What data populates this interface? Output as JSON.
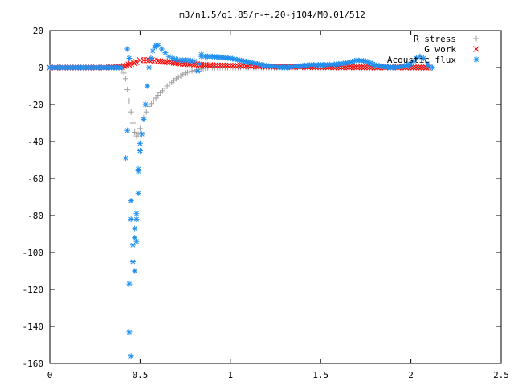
{
  "chart_data": {
    "type": "scatter",
    "title": "m3/n1.5/q1.85/r-+.20-j104/M0.01/512",
    "xlabel": "",
    "ylabel": "",
    "xlim": [
      0,
      2.5
    ],
    "ylim": [
      -160,
      20
    ],
    "x_ticks": [
      0,
      0.5,
      1,
      1.5,
      2,
      2.5
    ],
    "x_tick_labels": [
      "0",
      "0.5",
      "1",
      "1.5",
      "2",
      "2.5"
    ],
    "y_ticks": [
      20,
      0,
      -20,
      -40,
      -60,
      -80,
      -100,
      -120,
      -140,
      -160
    ],
    "y_tick_labels": [
      "20",
      "0",
      "-20",
      "-40",
      "-60",
      "-80",
      "-100",
      "-120",
      "-140",
      "-160"
    ],
    "grid": false,
    "legend_position": "top-right",
    "series": [
      {
        "name": "R stress",
        "marker": "plus",
        "color": "#a0a0a0",
        "x": [
          0.0,
          0.1,
          0.2,
          0.3,
          0.38,
          0.4,
          0.41,
          0.42,
          0.43,
          0.44,
          0.45,
          0.46,
          0.47,
          0.48,
          0.49,
          0.5,
          0.52,
          0.55,
          0.6,
          0.65,
          0.7,
          0.75,
          0.8,
          0.85,
          0.9,
          1.0,
          1.1,
          1.2,
          1.3,
          1.4,
          1.5,
          1.6,
          1.7,
          1.8,
          1.9,
          2.0,
          2.1
        ],
        "y": [
          0,
          0,
          0,
          0,
          0,
          -1,
          -3,
          -6,
          -12,
          -18,
          -24,
          -30,
          -35,
          -37,
          -36,
          -33,
          -27,
          -21,
          -15,
          -10,
          -6,
          -3,
          -1.5,
          -0.5,
          0,
          0,
          0,
          0,
          0,
          0,
          0,
          0,
          0,
          0,
          0,
          0,
          0
        ]
      },
      {
        "name": "G work",
        "marker": "cross",
        "color": "#ff0000",
        "x": [
          0.0,
          0.1,
          0.2,
          0.3,
          0.4,
          0.45,
          0.48,
          0.5,
          0.52,
          0.55,
          0.58,
          0.6,
          0.65,
          0.7,
          0.75,
          0.8,
          0.85,
          0.9,
          1.0,
          1.1,
          1.2,
          1.3,
          1.4,
          1.5,
          1.6,
          1.7,
          1.8,
          1.9,
          2.0,
          2.1
        ],
        "y": [
          0,
          0,
          0,
          0,
          0.5,
          2,
          3,
          4,
          4,
          4,
          3.8,
          3.5,
          3,
          2.5,
          2,
          1.7,
          1.4,
          1.2,
          1,
          0.8,
          0.6,
          0.5,
          0.4,
          0.3,
          0.2,
          0.2,
          0.1,
          0.1,
          0.1,
          0
        ]
      },
      {
        "name": "Acoustic flux",
        "marker": "star",
        "color": "#1f8ff0",
        "x": [
          0.0,
          0.1,
          0.2,
          0.3,
          0.4,
          0.42,
          0.43,
          0.43,
          0.44,
          0.44,
          0.44,
          0.45,
          0.45,
          0.45,
          0.46,
          0.46,
          0.47,
          0.47,
          0.47,
          0.48,
          0.48,
          0.48,
          0.49,
          0.49,
          0.49,
          0.5,
          0.5,
          0.51,
          0.52,
          0.53,
          0.54,
          0.55,
          0.56,
          0.57,
          0.58,
          0.59,
          0.6,
          0.62,
          0.64,
          0.66,
          0.68,
          0.7,
          0.72,
          0.75,
          0.78,
          0.8,
          0.82,
          0.83,
          0.84,
          0.84,
          0.86,
          0.9,
          0.95,
          1.0,
          1.05,
          1.1,
          1.15,
          1.2,
          1.25,
          1.3,
          1.35,
          1.4,
          1.45,
          1.5,
          1.55,
          1.6,
          1.65,
          1.7,
          1.75,
          1.8,
          1.85,
          1.9,
          1.95,
          2.0,
          2.03,
          2.05,
          2.07,
          2.09,
          2.1,
          2.12
        ],
        "y": [
          0,
          0,
          0,
          0,
          0,
          -49,
          -34,
          10,
          -117,
          -143,
          5,
          -72,
          -82,
          -156,
          -96,
          -105,
          -110,
          -92,
          -87,
          -94,
          -82,
          -79,
          -68,
          -56,
          -55,
          -45,
          -41,
          -36,
          -28,
          -20,
          -10,
          0,
          5,
          9,
          11,
          12,
          12,
          10,
          8,
          6,
          5,
          4.5,
          4,
          4,
          3.8,
          3.5,
          -2,
          2,
          7,
          6,
          6,
          6,
          5.5,
          5,
          4,
          3,
          2,
          1,
          0.5,
          0,
          0.5,
          1,
          1.5,
          1.5,
          1.5,
          2,
          2.5,
          4,
          3.5,
          1.5,
          0.5,
          0,
          0.5,
          2,
          5,
          6,
          5,
          2,
          1,
          0
        ]
      }
    ]
  }
}
